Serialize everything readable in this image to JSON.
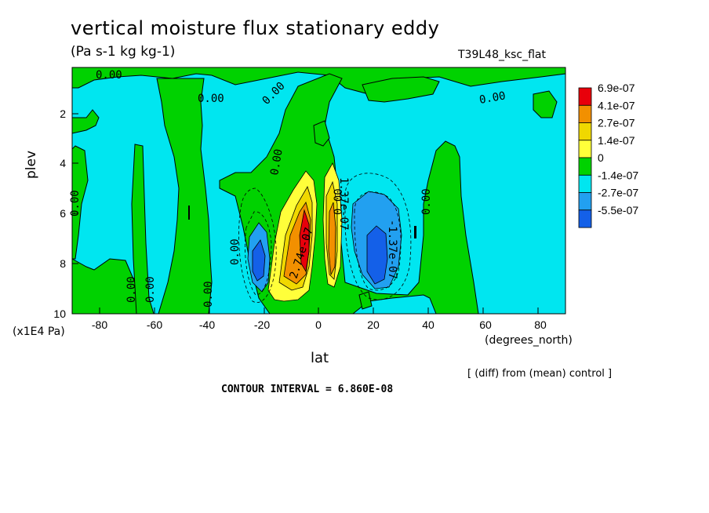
{
  "chart_data": {
    "type": "heatmap",
    "title": "vertical moisture flux stationary eddy",
    "units": "(Pa s-1 kg kg-1)",
    "run_label": "T39L48_ksc_flat",
    "xlabel": "lat",
    "x_units": "(degrees_north)",
    "ylabel": "plev",
    "y_units": "(x1E4 Pa)",
    "xlim": [
      -90,
      90
    ],
    "ylim": [
      10,
      0.2
    ],
    "x_ticks": [
      "-80",
      "-60",
      "-40",
      "-20",
      "0",
      "20",
      "40",
      "60",
      "80"
    ],
    "y_ticks": [
      "2",
      "4",
      "6",
      "8",
      "10"
    ],
    "contour_interval_text": "CONTOUR INTERVAL = 6.860E-08",
    "difference_note": "[ (diff) from (mean) control ]",
    "colorbar": [
      {
        "label": "6.9e-07",
        "color": "#e8000b"
      },
      {
        "label": "4.1e-07",
        "color": "#f29000"
      },
      {
        "label": "2.7e-07",
        "color": "#f0d800"
      },
      {
        "label": "1.4e-07",
        "color": "#ffff3a"
      },
      {
        "label": "0",
        "color": "#00d200"
      },
      {
        "label": "-1.4e-07",
        "color": "#00e6f0"
      },
      {
        "label": "-2.7e-07",
        "color": "#22a0f0"
      },
      {
        "label": "-5.5e-07",
        "color": "#1460e8"
      }
    ],
    "contour_labels": [
      "0.00",
      "0.00",
      "0.00",
      "0.00",
      "0.00",
      "0.00",
      "0.00",
      "0.00",
      "0.00",
      "0.00",
      "0.00",
      "0.00",
      "2.74e-07",
      "1.37e-07",
      "-1.37e-07"
    ],
    "features": [
      {
        "name": "positive core",
        "lat": -5,
        "plev": 7,
        "value": 6.9e-07
      },
      {
        "name": "positive core",
        "lat": 5,
        "plev": 7,
        "value": 4.1e-07
      },
      {
        "name": "negative core",
        "lat": 21,
        "plev": 8,
        "value": -5.5e-07
      },
      {
        "name": "negative core",
        "lat": -23,
        "plev": 8,
        "value": -2.7e-07
      }
    ]
  }
}
